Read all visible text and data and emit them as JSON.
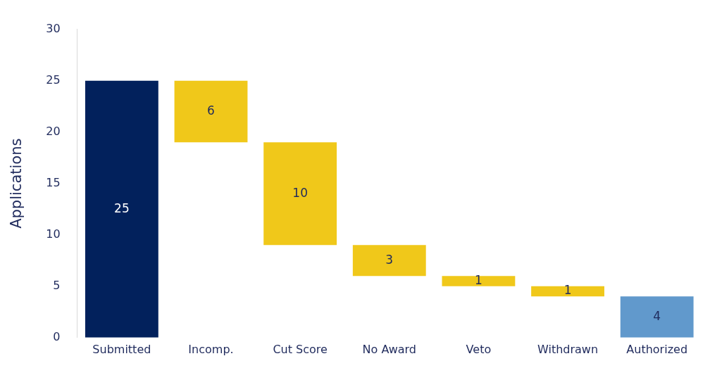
{
  "chart_data": {
    "type": "bar",
    "ylabel": "Applications",
    "categories": [
      "Submitted",
      "Incomp.",
      "Cut Score",
      "No Award",
      "Veto",
      "Withdrawn",
      "Authorized"
    ],
    "values": [
      25,
      6,
      10,
      3,
      1,
      1,
      4
    ],
    "base": [
      0,
      19,
      9,
      6,
      5,
      4,
      0
    ],
    "colors": [
      "#02215c",
      "#f0c81a",
      "#f0c81a",
      "#f0c81a",
      "#f0c81a",
      "#f0c81a",
      "#6199cc"
    ],
    "ylim": [
      0,
      30
    ],
    "yticks": [
      0,
      5,
      10,
      15,
      20,
      25,
      30
    ],
    "grid": false,
    "legend": false,
    "data_labels": true
  }
}
